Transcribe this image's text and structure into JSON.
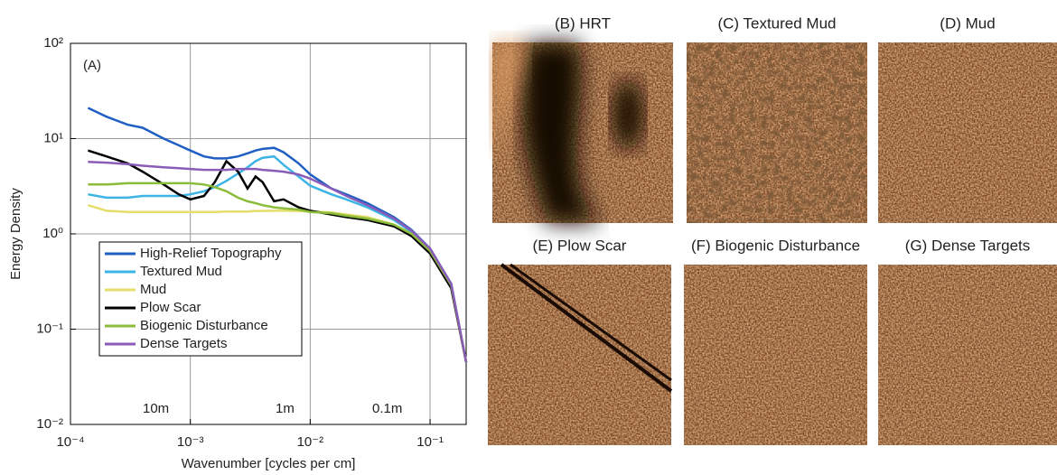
{
  "chart_data": {
    "type": "line",
    "panel_label": "(A)",
    "x_label": "Wavenumber [cycles per cm]",
    "y_label": "Energy Density",
    "annotations": [
      "10m",
      "1m",
      "0.1m"
    ],
    "log_x": true,
    "log_y": true,
    "grid": true,
    "xlim": [
      0.0001,
      0.2
    ],
    "ylim": [
      0.01,
      100
    ],
    "xticks": [
      {
        "value": 0.0001,
        "label": "10⁻⁴"
      },
      {
        "value": 0.001,
        "label": "10⁻³"
      },
      {
        "value": 0.01,
        "label": "10⁻²"
      },
      {
        "value": 0.1,
        "label": "10⁻¹"
      }
    ],
    "yticks": [
      {
        "value": 0.01,
        "label": "10⁻²"
      },
      {
        "value": 0.1,
        "label": "10⁻¹"
      },
      {
        "value": 1,
        "label": "10⁰"
      },
      {
        "value": 10,
        "label": "10¹"
      },
      {
        "value": 100,
        "label": "10²"
      }
    ],
    "legend_position": "lower left",
    "x": [
      0.00014,
      0.0002,
      0.0003,
      0.0004,
      0.0006,
      0.0008,
      0.001,
      0.0013,
      0.0016,
      0.002,
      0.0025,
      0.003,
      0.0035,
      0.004,
      0.005,
      0.006,
      0.008,
      0.01,
      0.015,
      0.02,
      0.03,
      0.05,
      0.07,
      0.1,
      0.15,
      0.2
    ],
    "series": [
      {
        "name": "High-Relief Topography",
        "color": "#1f5fc4",
        "values": [
          21,
          17,
          14,
          13,
          10,
          8.5,
          7.5,
          6.5,
          6.2,
          6.2,
          6.5,
          7,
          7.5,
          7.8,
          8,
          7.2,
          5.5,
          4.2,
          3,
          2.6,
          2.1,
          1.5,
          1.1,
          0.7,
          0.3,
          0.045
        ]
      },
      {
        "name": "Textured Mud",
        "color": "#3cb4e6",
        "values": [
          2.6,
          2.4,
          2.4,
          2.5,
          2.5,
          2.5,
          2.6,
          2.8,
          3.1,
          3.6,
          4.3,
          5,
          5.8,
          6.3,
          6.5,
          5.3,
          4,
          3.2,
          2.6,
          2.3,
          1.9,
          1.4,
          1.05,
          0.68,
          0.3,
          0.045
        ]
      },
      {
        "name": "Mud",
        "color": "#e6de6a",
        "values": [
          2.0,
          1.75,
          1.7,
          1.7,
          1.7,
          1.7,
          1.7,
          1.7,
          1.7,
          1.72,
          1.72,
          1.72,
          1.74,
          1.74,
          1.75,
          1.75,
          1.74,
          1.72,
          1.68,
          1.6,
          1.5,
          1.25,
          1.0,
          0.65,
          0.28,
          0.045
        ]
      },
      {
        "name": "Plow Scar",
        "color": "#000000",
        "values": [
          7.5,
          6.5,
          5.5,
          4.5,
          3.3,
          2.6,
          2.3,
          2.5,
          3.5,
          5.8,
          4.5,
          3,
          4,
          3.5,
          2.2,
          2.3,
          1.9,
          1.75,
          1.6,
          1.5,
          1.4,
          1.2,
          0.95,
          0.62,
          0.27,
          0.045
        ]
      },
      {
        "name": "Biogenic Disturbance",
        "color": "#8cbc3c",
        "values": [
          3.3,
          3.3,
          3.4,
          3.4,
          3.4,
          3.4,
          3.4,
          3.3,
          3.1,
          2.8,
          2.4,
          2.2,
          2.1,
          2.0,
          1.9,
          1.85,
          1.8,
          1.7,
          1.65,
          1.55,
          1.45,
          1.25,
          1.0,
          0.66,
          0.29,
          0.045
        ]
      },
      {
        "name": "Dense Targets",
        "color": "#8a5cb8",
        "values": [
          5.7,
          5.6,
          5.4,
          5.2,
          5.0,
          4.9,
          4.8,
          4.7,
          4.7,
          4.7,
          4.8,
          4.8,
          4.8,
          4.7,
          4.6,
          4.5,
          4.2,
          3.8,
          3.0,
          2.5,
          2.0,
          1.45,
          1.08,
          0.7,
          0.3,
          0.045
        ]
      }
    ]
  },
  "panels": [
    "(B) HRT",
    "(C) Textured Mud",
    "(D) Mud",
    "(E) Plow Scar",
    "(F) Biogenic Disturbance",
    "(G) Dense Targets"
  ]
}
